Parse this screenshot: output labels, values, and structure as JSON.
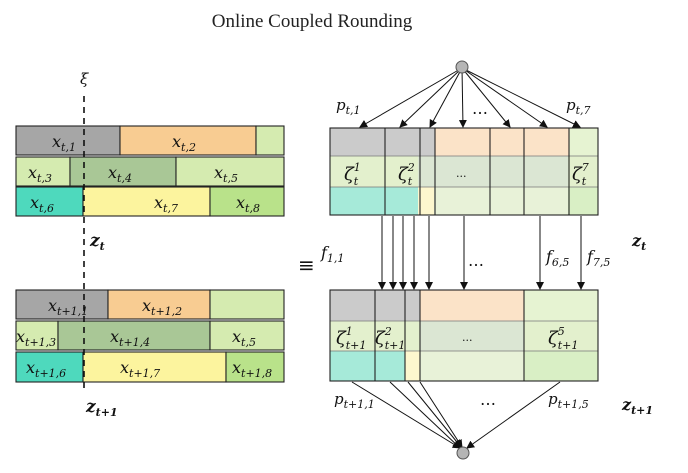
{
  "title": "Online Coupled Rounding",
  "labels": {
    "xi": "ξ",
    "z_t": "z",
    "z_t_sub": "t",
    "z_t1_sub": "t+1",
    "equiv": "≡",
    "ellipsis": "…",
    "ellipsis_small": "..."
  },
  "top_blocks": [
    {
      "base": "x",
      "sub": "t,1",
      "color": "#a6a6a6"
    },
    {
      "base": "x",
      "sub": "t,2",
      "color": "#f8cc92"
    },
    {
      "base": "x",
      "sub": "t,3",
      "color": "#d5ebb0"
    },
    {
      "base": "x",
      "sub": "t,4",
      "color": "#a9c796"
    },
    {
      "base": "x",
      "sub": "t,5",
      "color": "#d5ebb0"
    },
    {
      "base": "x",
      "sub": "t,6",
      "color": "#4ed9bd"
    },
    {
      "base": "x",
      "sub": "t,7",
      "color": "#fcf49e"
    },
    {
      "base": "x",
      "sub": "t,8",
      "color": "#b9e28a"
    }
  ],
  "bottom_blocks": [
    {
      "base": "x",
      "sub": "t+1,1",
      "color": "#a6a6a6"
    },
    {
      "base": "x",
      "sub": "t+1,2",
      "color": "#f8cc92"
    },
    {
      "base": "x",
      "sub": "t+1,3",
      "color": "#d5ebb0"
    },
    {
      "base": "x",
      "sub": "t+1,4",
      "color": "#a9c796"
    },
    {
      "base": "x",
      "sub": "t,5",
      "color": "#d5ebb0"
    },
    {
      "base": "x",
      "sub": "t+1,6",
      "color": "#4ed9bd"
    },
    {
      "base": "x",
      "sub": "t+1,7",
      "color": "#fcf49e"
    },
    {
      "base": "x",
      "sub": "t+1,8",
      "color": "#b9e28a"
    }
  ],
  "right_top": {
    "p_left": {
      "base": "p",
      "sub": "t,1"
    },
    "p_right": {
      "base": "p",
      "sub": "t,7"
    },
    "zeta_1": {
      "base": "ζ",
      "sub": "t",
      "sup": "1"
    },
    "zeta_2": {
      "base": "ζ",
      "sub": "t",
      "sup": "2"
    },
    "zeta_7": {
      "base": "ζ",
      "sub": "t",
      "sup": "7"
    }
  },
  "flows": {
    "f_left": {
      "base": "f",
      "sub": "1,1"
    },
    "f_mid": {
      "base": "f",
      "sub": "6,5"
    },
    "f_right": {
      "base": "f",
      "sub": "7,5"
    }
  },
  "right_bottom": {
    "p_left": {
      "base": "p",
      "sub": "t+1,1"
    },
    "p_right": {
      "base": "p",
      "sub": "t+1,5"
    },
    "zeta_1": {
      "base": "ζ",
      "sub": "t+1",
      "sup": "1"
    },
    "zeta_2": {
      "base": "ζ",
      "sub": "t+1",
      "sup": "2"
    },
    "zeta_5": {
      "base": "ζ",
      "sub": "t+1",
      "sup": "5"
    }
  },
  "colors": {
    "gray": "#a6a6a6",
    "orange": "#f8cc92",
    "light_green": "#d5ebb0",
    "mid_green": "#a9c796",
    "teal": "#4ed9bd",
    "yellow": "#fcf49e",
    "green": "#b9e28a",
    "node": "#b5b5b5"
  }
}
